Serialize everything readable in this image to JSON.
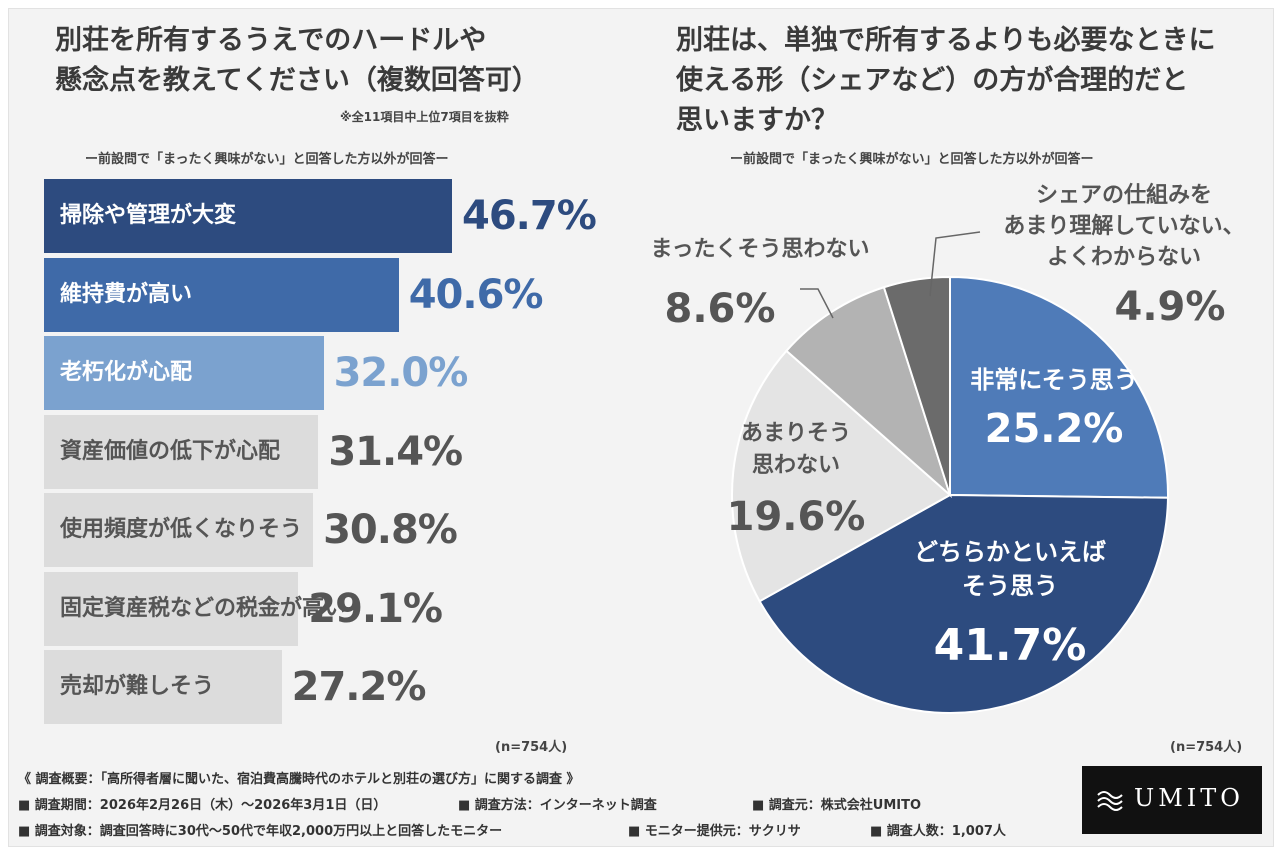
{
  "left": {
    "title_line1": "別荘を所有するうえでのハードルや",
    "title_line2": "懸念点を教えてください（複数回答可）",
    "note": "※全11項目中上位7項目を抜粋",
    "subtitle": "ー前設問で「まったく興味がない」と回答した方以外が回答ー",
    "n_label": "(n=754人)"
  },
  "right": {
    "title_line1": "別荘は、単独で所有するよりも必要なときに",
    "title_line2": "使える形（シェアなど）の方が合理的だと",
    "title_line3": "思いますか？",
    "subtitle": "ー前設問で「まったく興味がない」と回答した方以外が回答ー",
    "n_label": "(n=754人)"
  },
  "chart_data": [
    {
      "type": "bar",
      "orientation": "horizontal",
      "categories": [
        "掃除や管理が大変",
        "維持費が高い",
        "老朽化が心配",
        "資産価値の低下が心配",
        "使用頻度が低くなりそう",
        "固定資産税などの税金が高い",
        "売却が難しそう"
      ],
      "values": [
        46.7,
        40.6,
        32.0,
        31.4,
        30.8,
        29.1,
        27.2
      ],
      "value_labels": [
        "46.7%",
        "40.6%",
        "32.0%",
        "31.4%",
        "30.8%",
        "29.1%",
        "27.2%"
      ],
      "bar_colors": [
        "#2d4b7f",
        "#3f6aa8",
        "#7ba2cf",
        "#dcdcdc",
        "#dcdcdc",
        "#dcdcdc",
        "#dcdcdc"
      ],
      "label_colors": [
        "#ffffff",
        "#ffffff",
        "#ffffff",
        "#555555",
        "#555555",
        "#555555",
        "#555555"
      ],
      "value_colors": [
        "#2d4b7f",
        "#3f6aa8",
        "#7ba2cf",
        "#555555",
        "#555555",
        "#555555",
        "#555555"
      ]
    },
    {
      "type": "pie",
      "slices": [
        {
          "label_lines": [
            "非常にそう思う"
          ],
          "value": 25.2,
          "value_label": "25.2%",
          "color": "#4f7bb8",
          "text_color": "#ffffff"
        },
        {
          "label_lines": [
            "どちらかといえば",
            "そう思う"
          ],
          "value": 41.7,
          "value_label": "41.7%",
          "color": "#2d4b7f",
          "text_color": "#ffffff"
        },
        {
          "label_lines": [
            "あまりそう",
            "思わない"
          ],
          "value": 19.6,
          "value_label": "19.6%",
          "color": "#e4e4e4",
          "text_color": "#555555"
        },
        {
          "label_lines": [
            "まったくそう思わない"
          ],
          "value": 8.6,
          "value_label": "8.6%",
          "color": "#b3b3b3",
          "text_color": "#555555"
        },
        {
          "label_lines": [
            "シェアの仕組みを",
            "あまり理解していない、",
            "よくわからない"
          ],
          "value": 4.9,
          "value_label": "4.9%",
          "color": "#6b6b6b",
          "text_color": "#555555"
        }
      ]
    }
  ],
  "footer": {
    "line1": "《 調査概要：「高所得者層に聞いた、宿泊費高騰時代のホテルと別荘の選び方」に関する調査 》",
    "period": "■ 調査期間：2026年2月26日（木）〜2026年3月1日（日）",
    "method": "■ 調査方法：インターネット調査",
    "source": "■ 調査元：株式会社UMITO",
    "target": "■ 調査対象：調査回答時に30代〜50代で年収2,000万円以上と回答したモニター",
    "provider": "■ モニター提供元：サクリサ",
    "count": "■ 調査人数：1,007人"
  },
  "logo": {
    "text": "UMITO",
    "icon": "waves-logo-icon"
  }
}
